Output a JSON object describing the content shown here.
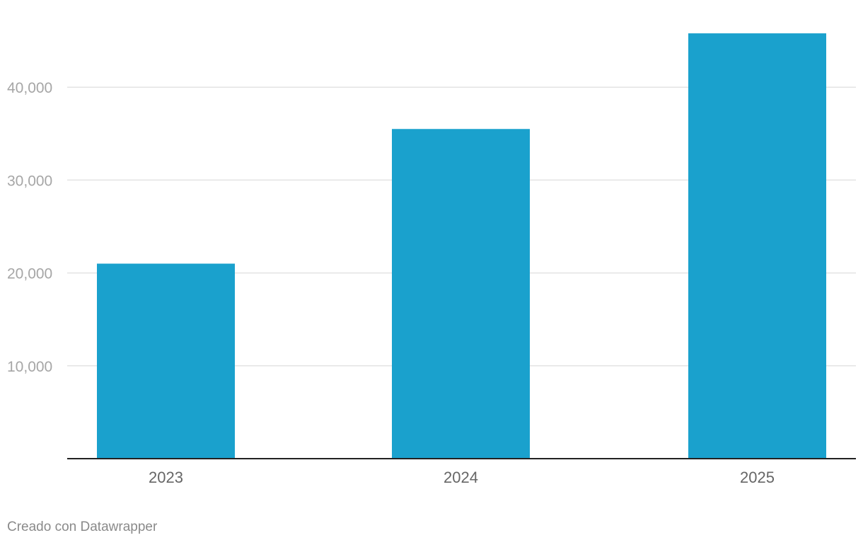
{
  "chart_data": {
    "type": "bar",
    "categories": [
      "2023",
      "2024",
      "2025"
    ],
    "values": [
      21000,
      35500,
      45800
    ],
    "ylim": [
      0,
      50000
    ],
    "yticks": [
      10000,
      20000,
      30000,
      40000
    ],
    "ytick_labels": [
      "10,000",
      "20,000",
      "30,000",
      "40,000"
    ],
    "grid": true,
    "bar_color": "#1aa1cd",
    "title": "",
    "xlabel": "",
    "ylabel": ""
  },
  "footer": {
    "credit": "Creado con Datawrapper"
  }
}
